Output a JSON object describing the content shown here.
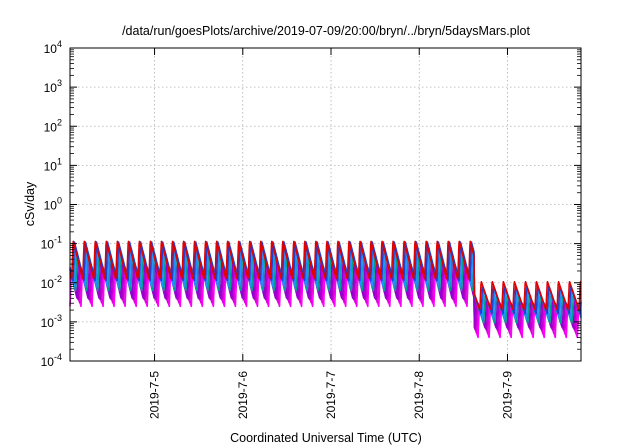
{
  "chart_data": {
    "type": "line",
    "title": "/data/run/goesPlots/archive/2019-07-09/20:00/bryn/../bryn/5daysMars.plot",
    "xlabel": "Coordinated Universal Time (UTC)",
    "ylabel": "cSv/day",
    "yscale": "log",
    "ylim": [
      0.0001,
      10000
    ],
    "xlim": [
      "2019-07-04T01:00",
      "2019-07-09T20:00"
    ],
    "x_ticks": [
      "2019-7-5",
      "2019-7-6",
      "2019-7-7",
      "2019-7-8",
      "2019-7-9"
    ],
    "y_ticks": [
      {
        "base": "10",
        "exp": "-4"
      },
      {
        "base": "10",
        "exp": "-3"
      },
      {
        "base": "10",
        "exp": "-2"
      },
      {
        "base": "10",
        "exp": "-1"
      },
      {
        "base": "10",
        "exp": "0"
      },
      {
        "base": "10",
        "exp": "1"
      },
      {
        "base": "10",
        "exp": "2"
      },
      {
        "base": "10",
        "exp": "3"
      },
      {
        "base": "10",
        "exp": "4"
      }
    ],
    "grid": true,
    "legend": "none",
    "pattern": {
      "period_hours": 3,
      "step_change_date": "2019-07-08T15:00"
    },
    "series": [
      {
        "color": "#ff00ff",
        "peak_before": 0.02,
        "trough_before": 0.0025,
        "peak_after": 0.0025,
        "trough_after": 0.0004
      },
      {
        "color": "#e000e0",
        "peak_before": 0.025,
        "trough_before": 0.003,
        "peak_after": 0.003,
        "trough_after": 0.0005
      },
      {
        "color": "#b000c8",
        "peak_before": 0.03,
        "trough_before": 0.0035,
        "peak_after": 0.0035,
        "trough_after": 0.0006
      },
      {
        "color": "#9400d3",
        "peak_before": 0.04,
        "trough_before": 0.004,
        "peak_after": 0.004,
        "trough_after": 0.0007
      },
      {
        "color": "#00a090",
        "peak_before": 0.06,
        "trough_before": 0.006,
        "peak_after": 0.005,
        "trough_after": 0.0009
      },
      {
        "color": "#1e90ff",
        "peak_before": 0.08,
        "trough_before": 0.008,
        "peak_after": 0.007,
        "trough_after": 0.0012
      },
      {
        "color": "#2040d0",
        "peak_before": 0.11,
        "trough_before": 0.011,
        "peak_after": 0.008,
        "trough_after": 0.0016
      },
      {
        "color": "#e00000",
        "peak_before": 0.12,
        "trough_before": 0.012,
        "peak_after": 0.011,
        "trough_after": 0.002
      }
    ]
  }
}
